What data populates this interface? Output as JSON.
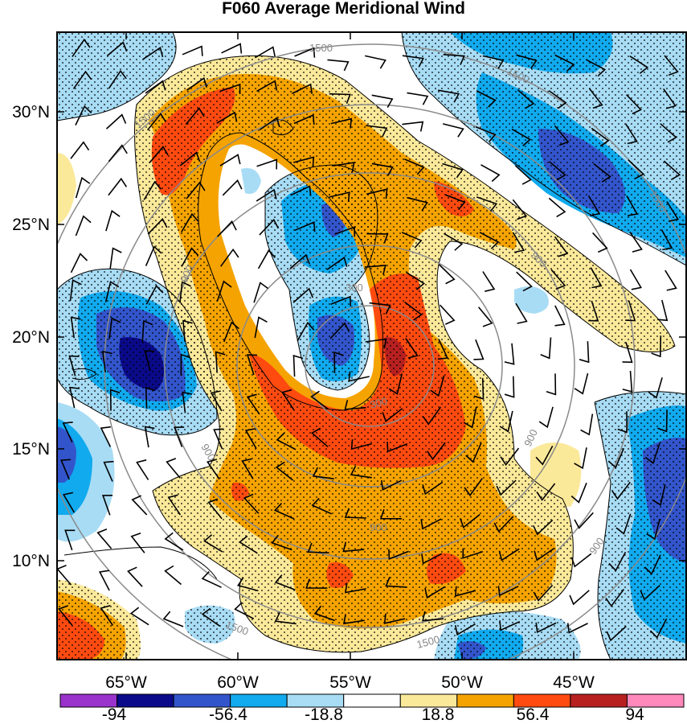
{
  "title": "F060 Average Meridional Wind",
  "lat_labels": [
    "30°N",
    "25°N",
    "20°N",
    "15°N",
    "10°N"
  ],
  "lon_labels": [
    "65°W",
    "60°W",
    "55°W",
    "50°W",
    "45°W"
  ],
  "colorbar": {
    "colors": [
      "#9933cc",
      "#0a0a8a",
      "#3355cc",
      "#11aaee",
      "#a8dcf5",
      "#ffffff",
      "#fbe99a",
      "#f5a300",
      "#ff4a10",
      "#b82020",
      "#ff88bb"
    ],
    "tick_labels": [
      "-94",
      "-56.4",
      "-18.8",
      "18.8",
      "56.4",
      "94"
    ]
  },
  "contour_labels": [
    "1500",
    "1500",
    "1500",
    "1500",
    "1500",
    "1500",
    "900",
    "900",
    "900",
    "900",
    "900",
    "900",
    "300",
    "300"
  ]
}
